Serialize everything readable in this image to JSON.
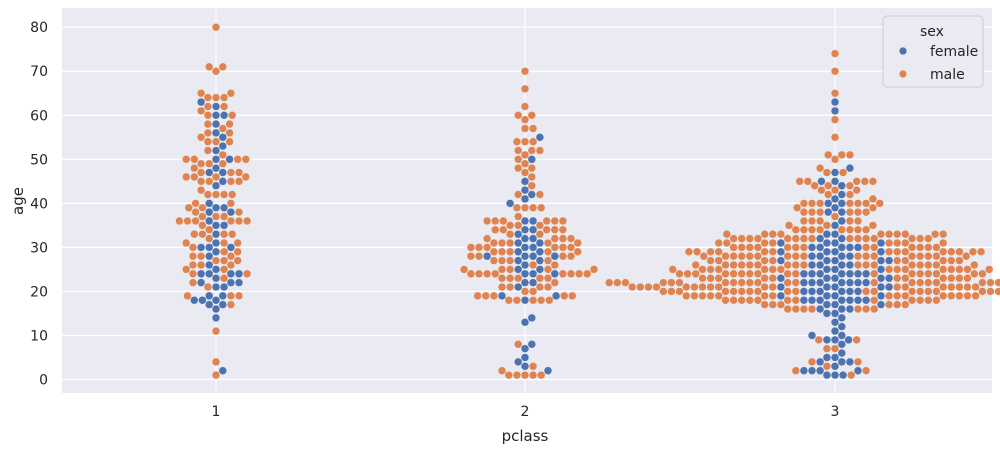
{
  "chart_data": {
    "type": "scatter",
    "subtype": "swarm",
    "title": "",
    "xlabel": "pclass",
    "ylabel": "age",
    "categories": [
      "1",
      "2",
      "3"
    ],
    "y_ticks": [
      0,
      10,
      20,
      30,
      40,
      50,
      60,
      70,
      80
    ],
    "ylim": [
      -3,
      84
    ],
    "grid": true,
    "legend": {
      "title": "sex",
      "placement": "top-right"
    },
    "series": [
      {
        "name": "female",
        "color": "#4c72b0",
        "values": [
          [
            2,
            36,
            53,
            19,
            31,
            24,
            35,
            38,
            18,
            30,
            16,
            60,
            17,
            50,
            58,
            29,
            30,
            33,
            24,
            35,
            40,
            44,
            45,
            22,
            60,
            47,
            23,
            56,
            18,
            48,
            52,
            62,
            22,
            47,
            21,
            24,
            39,
            25,
            14,
            19,
            17,
            24,
            63,
            22,
            39,
            38,
            21,
            50,
            26,
            55,
            28,
            30,
            18
          ],
          [
            14,
            27,
            3,
            29,
            21,
            5,
            13,
            24,
            22,
            28,
            36,
            40,
            8,
            34,
            50,
            28,
            25,
            45,
            32,
            32,
            31,
            27,
            24,
            28,
            25,
            42,
            30,
            22,
            2,
            19,
            34,
            7,
            33,
            4,
            26,
            24,
            55,
            43,
            19,
            18,
            30,
            31,
            41,
            28,
            29,
            36
          ],
          [
            4,
            27,
            14,
            2,
            31,
            26,
            15,
            8,
            22,
            18,
            28,
            21,
            45,
            39,
            18,
            30,
            19,
            17,
            23,
            20,
            24,
            28,
            16,
            9,
            3,
            30,
            22,
            41,
            63,
            24,
            29,
            25,
            1,
            31,
            4,
            32,
            18,
            2,
            18,
            6,
            22,
            10,
            21,
            24,
            33,
            20,
            21,
            15,
            30,
            9,
            21,
            23,
            27,
            11,
            29,
            26,
            35,
            19,
            32,
            19,
            38,
            45,
            18,
            48,
            16,
            42,
            47,
            20,
            17,
            22,
            25,
            26,
            23,
            31,
            13,
            5,
            2,
            22,
            5,
            24,
            22,
            18,
            21,
            28,
            30,
            16,
            28,
            27,
            24,
            20,
            9,
            23,
            24,
            20,
            10,
            27,
            26,
            22,
            40,
            29,
            36,
            61,
            18,
            38,
            27,
            4,
            1,
            44,
            12,
            23,
            40,
            33,
            19,
            17,
            31,
            30,
            24,
            20,
            2,
            25,
            29,
            1
          ]
        ]
      },
      {
        "name": "male",
        "color": "#dd8452",
        "values": [
          [
            54,
            28,
            42,
            65,
            45,
            4,
            64,
            37,
            28,
            71,
            36,
            65,
            50,
            34,
            52,
            40,
            23,
            19,
            36,
            36,
            40,
            58,
            1,
            70,
            56,
            50,
            33,
            49,
            31,
            49,
            42,
            30,
            27,
            11,
            36,
            24,
            47,
            38,
            26,
            22,
            46,
            62,
            47,
            60,
            28,
            45,
            60,
            48,
            32,
            24,
            50,
            45,
            58,
            71,
            50,
            37,
            27,
            36,
            64,
            61,
            19,
            42,
            55,
            39,
            33,
            46,
            29,
            49,
            31,
            56,
            46,
            19,
            42,
            21,
            37,
            27,
            17,
            31,
            51,
            38,
            47,
            64,
            25,
            54,
            26,
            35,
            80,
            57,
            54,
            46,
            39,
            29,
            26,
            33,
            43,
            33,
            62,
            25,
            36,
            45
          ],
          [
            35,
            27,
            54,
            1,
            34,
            19,
            34,
            25,
            23,
            32,
            18,
            54,
            28,
            46,
            29,
            29,
            20,
            66,
            24,
            21,
            42,
            2,
            70,
            24,
            30,
            36,
            31,
            23,
            39,
            51,
            25,
            36,
            30,
            29,
            19,
            62,
            3,
            25,
            18,
            35,
            21,
            30,
            36,
            34,
            8,
            24,
            44,
            57,
            47,
            18,
            48,
            28,
            1,
            31,
            27,
            23,
            50,
            30,
            57,
            42,
            18,
            34,
            19,
            33,
            27,
            59,
            52,
            25,
            28,
            23,
            24,
            36,
            31,
            54,
            30,
            32,
            24,
            1,
            36,
            39,
            18,
            60,
            24,
            29,
            22,
            48,
            23,
            52,
            25,
            24,
            27,
            31,
            39,
            60,
            32,
            26,
            19,
            20,
            39,
            30,
            52,
            37,
            35,
            21,
            33,
            26,
            32,
            19,
            1,
            31,
            24,
            49,
            36,
            28,
            1,
            34,
            21,
            29
          ],
          [
            22,
            35,
            2,
            20,
            28,
            45,
            20,
            19,
            40,
            28,
            65,
            21,
            24,
            33,
            26,
            28,
            29,
            25,
            26,
            20,
            24,
            17,
            55,
            20,
            17,
            34,
            16,
            30,
            22,
            19,
            33,
            34,
            23,
            32,
            26,
            45,
            51,
            21,
            33,
            28,
            24,
            29,
            21,
            24,
            28,
            27,
            59,
            51,
            22,
            29,
            30,
            22,
            44,
            19,
            23,
            42,
            32,
            27,
            30,
            21,
            32,
            18,
            23,
            38,
            30,
            44,
            42,
            18,
            21,
            40,
            22,
            28,
            40,
            19,
            25,
            29,
            20,
            26,
            22,
            43,
            21,
            24,
            25,
            36,
            39,
            38,
            20,
            33,
            21,
            16,
            32,
            20,
            26,
            16,
            24,
            74,
            28,
            30,
            21,
            20,
            23,
            31,
            22,
            45,
            34,
            38,
            32,
            24,
            18,
            22,
            3,
            2,
            22,
            17,
            45,
            24,
            17,
            21,
            26,
            19,
            30,
            26,
            18,
            21,
            34,
            25,
            31,
            32,
            35,
            23,
            18,
            34,
            27,
            28,
            26,
            20,
            21,
            26,
            44,
            28,
            40,
            47,
            27,
            20,
            39,
            32,
            18,
            19,
            48,
            36,
            16,
            31,
            20,
            29,
            20,
            27,
            23,
            50,
            51,
            22,
            30,
            22,
            25,
            25,
            21,
            32,
            18,
            7,
            22,
            40,
            29,
            33,
            21,
            21,
            18,
            22,
            70,
            43,
            19,
            19,
            38,
            24,
            26,
            25,
            20,
            33,
            31,
            25,
            33,
            37,
            22,
            20,
            36,
            26,
            40,
            47,
            30,
            29,
            28,
            4,
            29,
            27,
            19,
            26,
            25,
            24,
            19,
            32,
            21,
            23,
            29,
            21,
            32,
            20,
            22,
            9,
            32,
            4,
            28,
            25,
            22,
            45,
            26,
            22,
            43,
            36,
            24,
            22,
            34,
            18,
            1,
            30,
            41,
            21,
            28,
            26,
            29,
            24,
            32,
            20,
            17,
            38,
            22,
            21,
            31,
            27,
            25,
            18,
            26,
            16,
            28,
            29,
            30,
            23,
            27,
            19,
            9,
            35,
            36,
            7,
            23,
            20,
            31,
            33,
            22,
            20,
            16,
            25,
            24,
            19,
            28,
            32,
            21,
            29,
            30,
            22,
            25,
            33,
            24,
            40,
            16,
            28,
            29,
            22,
            30,
            32,
            22,
            21,
            34,
            18,
            24,
            27,
            20,
            31,
            19,
            25,
            23,
            21,
            28,
            19,
            28,
            17,
            31,
            18,
            32,
            25,
            29,
            38,
            26,
            30,
            22,
            24,
            34,
            19,
            33,
            24,
            26,
            23,
            21
          ]
        ]
      }
    ]
  }
}
